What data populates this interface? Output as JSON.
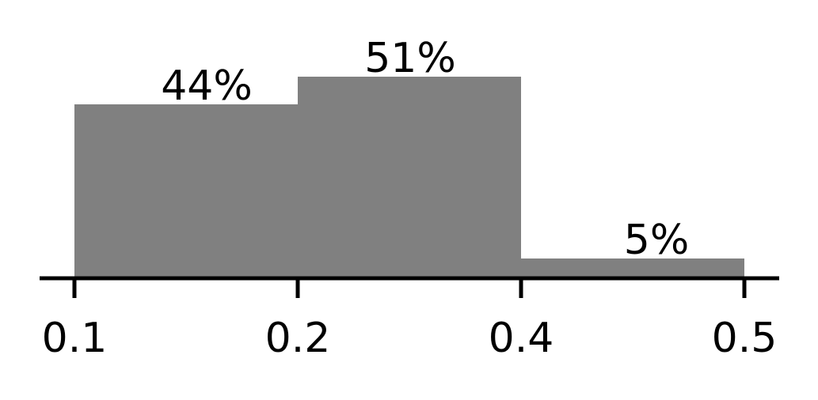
{
  "chart_data": {
    "type": "bar",
    "title": "",
    "xlabel": "",
    "ylabel": "",
    "tick_labels": [
      "0.1",
      "0.2",
      "0.4",
      "0.5"
    ],
    "bins": [
      {
        "label": "44%",
        "value": 44
      },
      {
        "label": "51%",
        "value": 51
      },
      {
        "label": "5%",
        "value": 5
      }
    ],
    "ylim": [
      0,
      51
    ],
    "grid": false,
    "legend": "none",
    "colors": {
      "bar": "#808080",
      "axis": "#000000",
      "text": "#000000"
    }
  }
}
